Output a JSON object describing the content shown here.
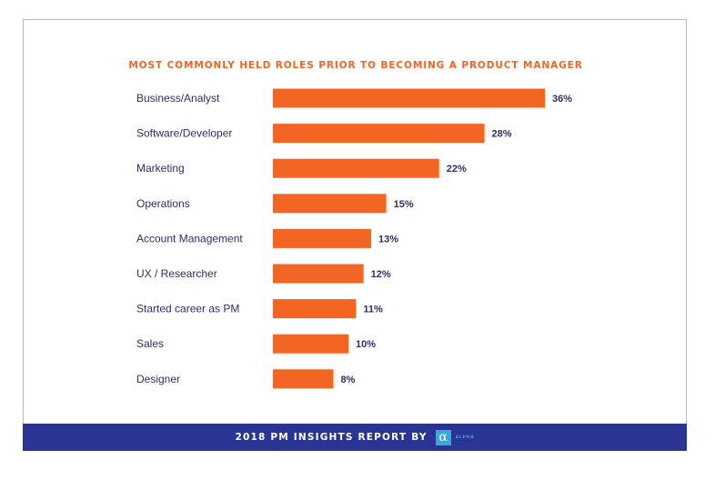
{
  "colors": {
    "bar": "#f26522",
    "title": "#f26522",
    "category_text": "#2a2f66",
    "value_text": "#2a2f66",
    "footer_bg": "#2a3593",
    "logo": "#37a8d8"
  },
  "footer": {
    "text": "2018 PM INSIGHTS REPORT BY",
    "logo_mark": "α",
    "logo_word": "ALPHA"
  },
  "chart_data": {
    "type": "bar",
    "orientation": "horizontal",
    "title": "MOST COMMONLY HELD ROLES PRIOR TO BECOMING A PRODUCT MANAGER",
    "categories": [
      "Business/Analyst",
      "Software/Developer",
      "Marketing",
      "Operations",
      "Account Management",
      "UX / Researcher",
      "Started career as PM",
      "Sales",
      "Designer"
    ],
    "values": [
      36,
      28,
      22,
      15,
      13,
      12,
      11,
      10,
      8
    ],
    "value_labels": [
      "36%",
      "28%",
      "22%",
      "15%",
      "13%",
      "12%",
      "11%",
      "10%",
      "8%"
    ],
    "xlim": [
      0,
      36
    ],
    "grid": false,
    "legend": "none"
  }
}
